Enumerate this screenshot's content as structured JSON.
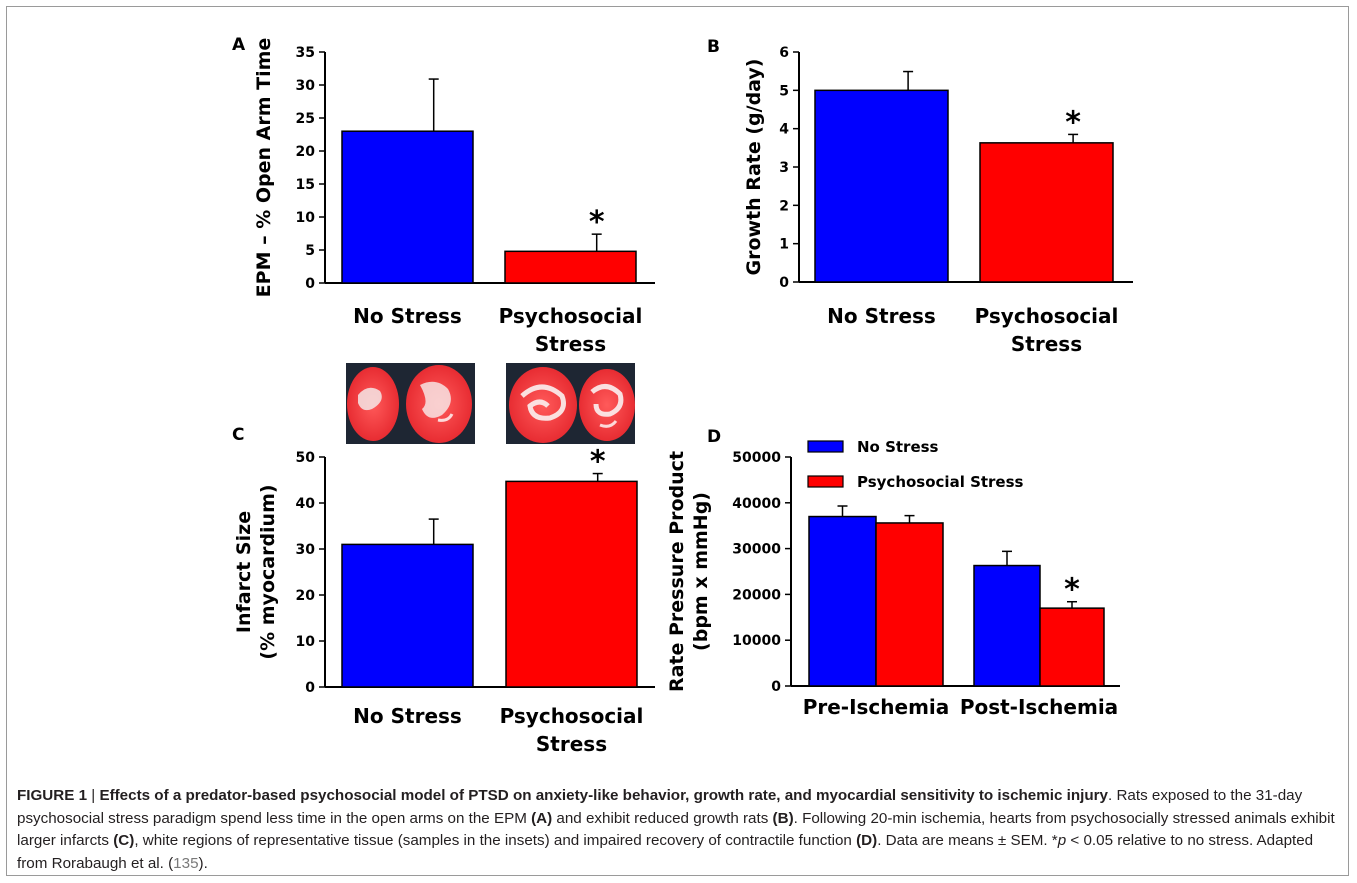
{
  "colors": {
    "no_stress": "#0000ff",
    "psychosocial_stress": "#ff0000"
  },
  "chart_data": [
    {
      "panel": "A",
      "type": "bar",
      "ylabel": "EPM – % Open Arm Time",
      "ylim": [
        0,
        35
      ],
      "yticks": [
        0,
        5,
        10,
        15,
        20,
        25,
        30,
        35
      ],
      "categories": [
        [
          "No Stress"
        ],
        [
          "Psychosocial",
          "Stress"
        ]
      ],
      "values": [
        23,
        4.8
      ],
      "errors": [
        7.9,
        2.6
      ],
      "significant": [
        false,
        true
      ],
      "annotation": "*"
    },
    {
      "panel": "B",
      "type": "bar",
      "ylabel": "Growth Rate (g/day)",
      "ylim": [
        0,
        6
      ],
      "yticks": [
        0,
        1,
        2,
        3,
        4,
        5,
        6
      ],
      "categories": [
        [
          "No Stress"
        ],
        [
          "Psychosocial",
          "Stress"
        ]
      ],
      "values": [
        5.0,
        3.63
      ],
      "errors": [
        0.49,
        0.22
      ],
      "significant": [
        false,
        true
      ],
      "annotation": "*"
    },
    {
      "panel": "C",
      "type": "bar",
      "ylabel": [
        "Infarct Size",
        "(% myocardium)"
      ],
      "ylim": [
        0,
        50
      ],
      "yticks": [
        0,
        10,
        20,
        30,
        40,
        50
      ],
      "categories": [
        [
          "No Stress"
        ],
        [
          "Psychosocial",
          "Stress"
        ]
      ],
      "values": [
        31,
        44.7
      ],
      "errors": [
        5.5,
        1.7
      ],
      "significant": [
        false,
        true
      ],
      "annotation": "*",
      "insets": [
        "heart-slices-no-stress",
        "heart-slices-psychosocial-stress"
      ]
    },
    {
      "panel": "D",
      "type": "bar",
      "ylabel": [
        "Rate Pressure Product",
        "(bpm x mmHg)"
      ],
      "ylim": [
        0,
        50000
      ],
      "yticks": [
        0,
        10000,
        20000,
        30000,
        40000,
        50000
      ],
      "categories": [
        "Pre-Ischemia",
        "Post-Ischemia"
      ],
      "series": [
        {
          "name": "No Stress",
          "values": [
            37000,
            26300
          ],
          "errors": [
            2300,
            3100
          ]
        },
        {
          "name": "Psychosocial Stress",
          "values": [
            35600,
            17000
          ],
          "errors": [
            1600,
            1400
          ]
        }
      ],
      "significant": [
        [
          false,
          false
        ],
        [
          false,
          true
        ]
      ],
      "annotation": "*",
      "legend_position": "top"
    }
  ],
  "caption": {
    "label": "FIGURE 1",
    "separator": " | ",
    "title": "Effects of a predator-based psychosocial model of PTSD on anxiety-like behavior, growth rate, and myocardial sensitivity to ischemic injury",
    "text_1": ". Rats exposed to the 31-day psychosocial stress paradigm spend less time in the open arms on the EPM ",
    "ref_a": "(A)",
    "text_2": " and exhibit reduced growth rats ",
    "ref_b": "(B)",
    "text_3": ". Following 20-min ischemia, hearts from psychosocially stressed animals exhibit larger infarcts ",
    "ref_c": "(C)",
    "text_4": ", white regions of representative tissue (samples in the insets) and impaired recovery of contractile function ",
    "ref_d": "(D)",
    "text_5": ". Data are means ± SEM. *",
    "p_symbol": "p",
    "text_6": " < 0.05 relative to no stress. Adapted from Rorabaugh et al. (",
    "citation": "135",
    "text_7": ")."
  }
}
